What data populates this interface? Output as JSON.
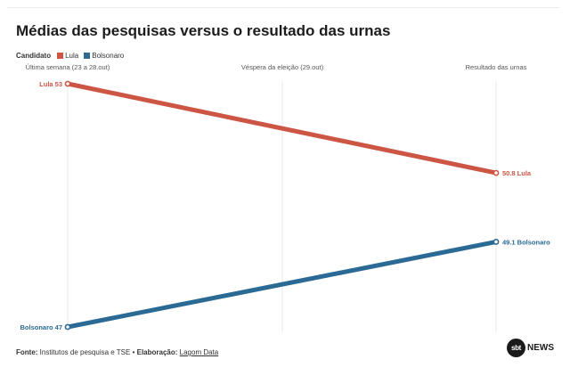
{
  "title": "Médias das pesquisas versus o resultado das urnas",
  "legend": {
    "label": "Candidato",
    "items": [
      {
        "name": "Lula",
        "color": "#cc5544"
      },
      {
        "name": "Bolsonaro",
        "color": "#2a6a94"
      }
    ]
  },
  "footer": {
    "source_label": "Fonte:",
    "source_text": " Institutos de pesquisa e TSE • ",
    "credit_label": "Elaboração:",
    "credit_link": "Lagom Data"
  },
  "logo": {
    "mark": "sbt",
    "word": "NEWS"
  },
  "chart_data": {
    "type": "line",
    "categories": [
      "Última semana (23 a 28.out)",
      "Véspera da eleição (29.out)",
      "Resultado das urnas"
    ],
    "x_positions": [
      0,
      1,
      2
    ],
    "series": [
      {
        "name": "Lula",
        "color": "#cc5544",
        "points": [
          {
            "x": 0,
            "y": 53
          },
          {
            "x": 2,
            "y": 50.8
          }
        ],
        "start_label": "Lula 53",
        "end_label": "50.8 Lula"
      },
      {
        "name": "Bolsonaro",
        "color": "#2a6a94",
        "points": [
          {
            "x": 0,
            "y": 47
          },
          {
            "x": 2,
            "y": 49.1
          }
        ],
        "start_label": "Bolsonaro 47",
        "end_label": "49.1 Bolsonaro"
      }
    ],
    "ylim": [
      47,
      53
    ],
    "grid": "vertical"
  }
}
